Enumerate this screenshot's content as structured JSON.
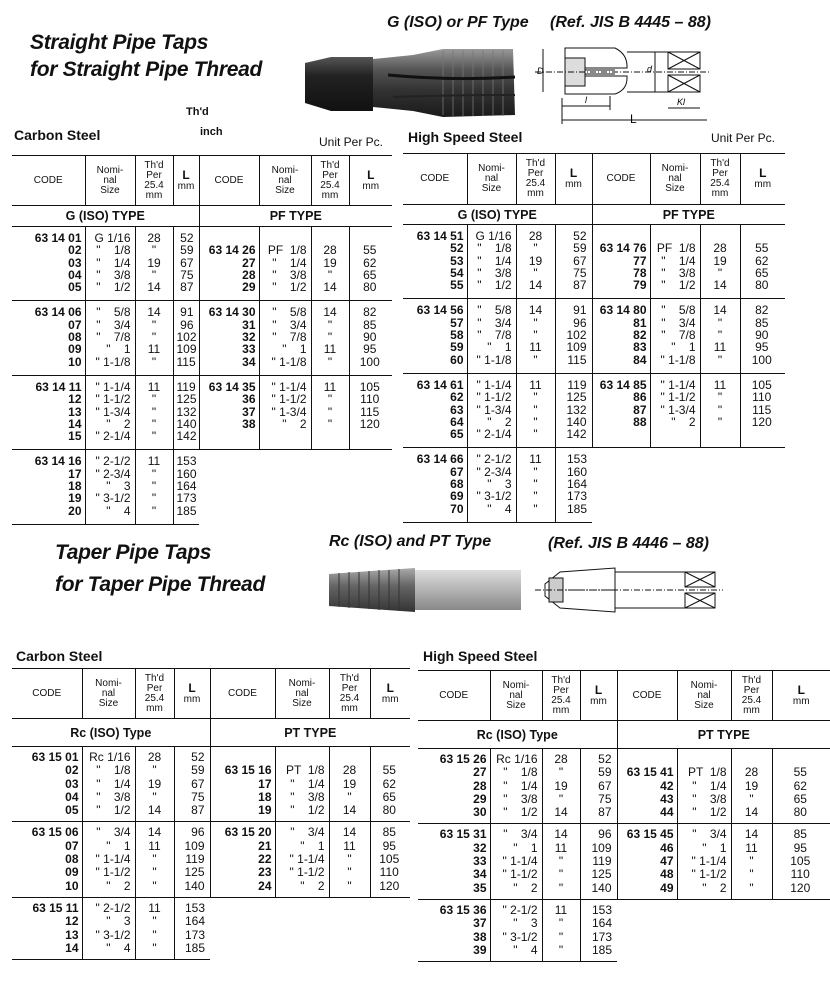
{
  "straight": {
    "title_line1": "Straight Pipe Taps",
    "title_line2": "for Straight Pipe Thread",
    "type_title": "G (ISO) or PF Type",
    "reference": "(Ref. JIS B 4445 – 88)",
    "thd_label": "Th'd",
    "inch_label": "inch",
    "carbon_label": "Carbon Steel",
    "hss_label": "High Speed Steel",
    "unit_left": "Unit Per Pc.",
    "unit_right": "Unit Per Pc.",
    "diagram_labels": {
      "D": "D",
      "d": "d",
      "l": "l",
      "L": "L",
      "kl": "Kl"
    }
  },
  "taper": {
    "title_line1": "Taper Pipe Taps",
    "title_line2": "for Taper Pipe Thread",
    "type_title": "Rc (ISO) and PT Type",
    "reference": "(Ref. JIS B 4446 – 88)",
    "carbon_label": "Carbon Steel",
    "hss_label": "High Speed Steel"
  },
  "column_headers": [
    "CODE",
    "Nomi-\nnal\nSize",
    "Th'd\nPer\n25.4\nmm",
    "L",
    "mm"
  ],
  "tables": [
    {
      "left": {
        "type": "G (ISO) TYPE",
        "groups": [
          [
            [
              "63 14 01",
              "G 1/16",
              "28",
              "52"
            ],
            [
              "02",
              "\"    1/8",
              "\"",
              "59"
            ],
            [
              "03",
              "\"    1/4",
              "19",
              "67"
            ],
            [
              "04",
              "\"    3/8",
              "\"",
              "75"
            ],
            [
              "05",
              "\"    1/2",
              "14",
              "87"
            ]
          ],
          [
            [
              "63 14 06",
              "\"    5/8",
              "14",
              "91"
            ],
            [
              "07",
              "\"    3/4",
              "\"",
              "96"
            ],
            [
              "08",
              "\"    7/8",
              "\"",
              "102"
            ],
            [
              "09",
              "\"    1",
              "11",
              "109"
            ],
            [
              "10",
              "\" 1-1/8",
              "\"",
              "115"
            ]
          ],
          [
            [
              "63 14 11",
              "\" 1-1/4",
              "11",
              "119"
            ],
            [
              "12",
              "\" 1-1/2",
              "\"",
              "125"
            ],
            [
              "13",
              "\" 1-3/4",
              "\"",
              "132"
            ],
            [
              "14",
              "\"    2",
              "\"",
              "140"
            ],
            [
              "15",
              "\" 2-1/4",
              "\"",
              "142"
            ]
          ],
          [
            [
              "63 14 16",
              "\" 2-1/2",
              "11",
              "153"
            ],
            [
              "17",
              "\" 2-3/4",
              "\"",
              "160"
            ],
            [
              "18",
              "\"    3",
              "\"",
              "164"
            ],
            [
              "19",
              "\" 3-1/2",
              "\"",
              "173"
            ],
            [
              "20",
              "\"    4",
              "\"",
              "185"
            ]
          ]
        ]
      },
      "right": {
        "type": "PF TYPE",
        "groups": [
          [
            [
              "63 14 26",
              "PF  1/8",
              "28",
              "55"
            ],
            [
              "27",
              "\"    1/4",
              "19",
              "62"
            ],
            [
              "28",
              "\"    3/8",
              "\"",
              "65"
            ],
            [
              "29",
              "\"    1/2",
              "14",
              "80"
            ]
          ],
          [
            [
              "63 14 30",
              "\"    5/8",
              "14",
              "82"
            ],
            [
              "31",
              "\"    3/4",
              "\"",
              "85"
            ],
            [
              "32",
              "\"    7/8",
              "\"",
              "90"
            ],
            [
              "33",
              "\"    1",
              "11",
              "95"
            ],
            [
              "34",
              "\" 1-1/8",
              "\"",
              "100"
            ]
          ],
          [
            [
              "63 14 35",
              "\" 1-1/4",
              "11",
              "105"
            ],
            [
              "36",
              "\" 1-1/2",
              "\"",
              "110"
            ],
            [
              "37",
              "\" 1-3/4",
              "\"",
              "115"
            ],
            [
              "38",
              "\"    2",
              "\"",
              "120"
            ]
          ]
        ]
      }
    },
    {
      "left": {
        "type": "G (ISO) TYPE",
        "groups": [
          [
            [
              "63 14 51",
              "G 1/16",
              "28",
              "52"
            ],
            [
              "52",
              "\"    1/8",
              "\"",
              "59"
            ],
            [
              "53",
              "\"    1/4",
              "19",
              "67"
            ],
            [
              "54",
              "\"    3/8",
              "\"",
              "75"
            ],
            [
              "55",
              "\"    1/2",
              "14",
              "87"
            ]
          ],
          [
            [
              "63 14 56",
              "\"    5/8",
              "14",
              "91"
            ],
            [
              "57",
              "\"    3/4",
              "\"",
              "96"
            ],
            [
              "58",
              "\"    7/8",
              "\"",
              "102"
            ],
            [
              "59",
              "\"    1",
              "11",
              "109"
            ],
            [
              "60",
              "\" 1-1/8",
              "\"",
              "115"
            ]
          ],
          [
            [
              "63 14 61",
              "\" 1-1/4",
              "11",
              "119"
            ],
            [
              "62",
              "\" 1-1/2",
              "\"",
              "125"
            ],
            [
              "63",
              "\" 1-3/4",
              "\"",
              "132"
            ],
            [
              "64",
              "\"    2",
              "\"",
              "140"
            ],
            [
              "65",
              "\" 2-1/4",
              "\"",
              "142"
            ]
          ],
          [
            [
              "63 14 66",
              "\" 2-1/2",
              "11",
              "153"
            ],
            [
              "67",
              "\" 2-3/4",
              "\"",
              "160"
            ],
            [
              "68",
              "\"    3",
              "\"",
              "164"
            ],
            [
              "69",
              "\" 3-1/2",
              "\"",
              "173"
            ],
            [
              "70",
              "\"    4",
              "\"",
              "185"
            ]
          ]
        ]
      },
      "right": {
        "type": "PF TYPE",
        "groups": [
          [
            [
              "63 14 76",
              "PF  1/8",
              "28",
              "55"
            ],
            [
              "77",
              "\"    1/4",
              "19",
              "62"
            ],
            [
              "78",
              "\"    3/8",
              "\"",
              "65"
            ],
            [
              "79",
              "\"    1/2",
              "14",
              "80"
            ]
          ],
          [
            [
              "63 14 80",
              "\"    5/8",
              "14",
              "82"
            ],
            [
              "81",
              "\"    3/4",
              "\"",
              "85"
            ],
            [
              "82",
              "\"    7/8",
              "\"",
              "90"
            ],
            [
              "83",
              "\"    1",
              "11",
              "95"
            ],
            [
              "84",
              "\" 1-1/8",
              "\"",
              "100"
            ]
          ],
          [
            [
              "63 14 85",
              "\" 1-1/4",
              "11",
              "105"
            ],
            [
              "86",
              "\" 1-1/2",
              "\"",
              "110"
            ],
            [
              "87",
              "\" 1-3/4",
              "\"",
              "115"
            ],
            [
              "88",
              "\"    2",
              "\"",
              "120"
            ]
          ]
        ]
      }
    },
    {
      "left": {
        "type": "Rc (ISO) Type",
        "groups": [
          [
            [
              "63 15 01",
              "Rc 1/16",
              "28",
              "52"
            ],
            [
              "02",
              "\"    1/8",
              "\"",
              "59"
            ],
            [
              "03",
              "\"    1/4",
              "19",
              "67"
            ],
            [
              "04",
              "\"    3/8",
              "\"",
              "75"
            ],
            [
              "05",
              "\"    1/2",
              "14",
              "87"
            ]
          ],
          [
            [
              "63 15 06",
              "\"    3/4",
              "14",
              "96"
            ],
            [
              "07",
              "\"    1",
              "11",
              "109"
            ],
            [
              "08",
              "\" 1-1/4",
              "\"",
              "119"
            ],
            [
              "09",
              "\" 1-1/2",
              "\"",
              "125"
            ],
            [
              "10",
              "\"    2",
              "\"",
              "140"
            ]
          ],
          [
            [
              "63 15 11",
              "\" 2-1/2",
              "11",
              "153"
            ],
            [
              "12",
              "\"    3",
              "\"",
              "164"
            ],
            [
              "13",
              "\" 3-1/2",
              "\"",
              "173"
            ],
            [
              "14",
              "\"    4",
              "\"",
              "185"
            ]
          ]
        ]
      },
      "right": {
        "type": "PT TYPE",
        "groups": [
          [
            [
              "63 15 16",
              "PT  1/8",
              "28",
              "55"
            ],
            [
              "17",
              "\"    1/4",
              "19",
              "62"
            ],
            [
              "18",
              "\"    3/8",
              "\"",
              "65"
            ],
            [
              "19",
              "\"    1/2",
              "14",
              "80"
            ]
          ],
          [
            [
              "63 15 20",
              "\"    3/4",
              "14",
              "85"
            ],
            [
              "21",
              "\"    1",
              "11",
              "95"
            ],
            [
              "22",
              "\" 1-1/4",
              "\"",
              "105"
            ],
            [
              "23",
              "\" 1-1/2",
              "\"",
              "110"
            ],
            [
              "24",
              "\"    2",
              "\"",
              "120"
            ]
          ]
        ]
      }
    },
    {
      "left": {
        "type": "Rc (ISO) Type",
        "groups": [
          [
            [
              "63 15 26",
              "Rc 1/16",
              "28",
              "52"
            ],
            [
              "27",
              "\"    1/8",
              "\"",
              "59"
            ],
            [
              "28",
              "\"    1/4",
              "19",
              "67"
            ],
            [
              "29",
              "\"    3/8",
              "\"",
              "75"
            ],
            [
              "30",
              "\"    1/2",
              "14",
              "87"
            ]
          ],
          [
            [
              "63 15 31",
              "\"    3/4",
              "14",
              "96"
            ],
            [
              "32",
              "\"    1",
              "11",
              "109"
            ],
            [
              "33",
              "\" 1-1/4",
              "\"",
              "119"
            ],
            [
              "34",
              "\" 1-1/2",
              "\"",
              "125"
            ],
            [
              "35",
              "\"    2",
              "\"",
              "140"
            ]
          ],
          [
            [
              "63 15 36",
              "\" 2-1/2",
              "11",
              "153"
            ],
            [
              "37",
              "\"    3",
              "\"",
              "164"
            ],
            [
              "38",
              "\" 3-1/2",
              "\"",
              "173"
            ],
            [
              "39",
              "\"    4",
              "\"",
              "185"
            ]
          ]
        ]
      },
      "right": {
        "type": "PT TYPE",
        "groups": [
          [
            [
              "63 15 41",
              "PT  1/8",
              "28",
              "55"
            ],
            [
              "42",
              "\"    1/4",
              "19",
              "62"
            ],
            [
              "43",
              "\"    3/8",
              "\"",
              "65"
            ],
            [
              "44",
              "\"    1/2",
              "14",
              "80"
            ]
          ],
          [
            [
              "63 15 45",
              "\"    3/4",
              "14",
              "85"
            ],
            [
              "46",
              "\"    1",
              "11",
              "95"
            ],
            [
              "47",
              "\" 1-1/4",
              "\"",
              "105"
            ],
            [
              "48",
              "\" 1-1/2",
              "\"",
              "110"
            ],
            [
              "49",
              "\"    2",
              "\"",
              "120"
            ]
          ]
        ]
      }
    }
  ]
}
